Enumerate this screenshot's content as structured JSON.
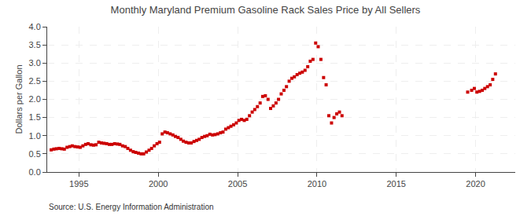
{
  "chart_data": {
    "type": "scatter",
    "title": "Monthly Maryland Premium Gasoline Rack Sales Price by All Sellers",
    "ylabel": "Dollars per Gallon",
    "annotations": [
      "Source: U.S. Energy Information Administration"
    ],
    "color": "#cc0000",
    "marker": "square",
    "grid": true,
    "xlim": [
      1993.0,
      2022.5
    ],
    "ylim": [
      0.0,
      4.0
    ],
    "xticks": [
      1995,
      2000,
      2005,
      2010,
      2015,
      2020
    ],
    "yticks": [
      {
        "value": 0.0,
        "label": "0.0"
      },
      0.5,
      {
        "value": 1.0,
        "label": "1.0"
      },
      1.5,
      {
        "value": 2.0,
        "label": "2.0"
      },
      2.5,
      {
        "value": 3.0,
        "label": "3.0"
      },
      3.5,
      {
        "value": 4.0,
        "label": "4.0"
      }
    ],
    "x": [
      1993.25,
      1993.42,
      1993.58,
      1993.75,
      1993.92,
      1994.08,
      1994.25,
      1994.42,
      1994.58,
      1994.75,
      1994.92,
      1995.08,
      1995.25,
      1995.42,
      1995.58,
      1995.75,
      1995.92,
      1996.08,
      1996.25,
      1996.42,
      1996.58,
      1996.75,
      1996.92,
      1997.08,
      1997.25,
      1997.42,
      1997.58,
      1997.75,
      1997.92,
      1998.08,
      1998.25,
      1998.42,
      1998.58,
      1998.75,
      1998.92,
      1999.08,
      1999.25,
      1999.42,
      1999.58,
      1999.75,
      1999.92,
      2000.08,
      2000.25,
      2000.42,
      2000.58,
      2000.75,
      2000.92,
      2001.08,
      2001.25,
      2001.42,
      2001.58,
      2001.75,
      2001.92,
      2002.08,
      2002.25,
      2002.42,
      2002.58,
      2002.75,
      2002.92,
      2003.08,
      2003.25,
      2003.42,
      2003.58,
      2003.75,
      2003.92,
      2004.08,
      2004.25,
      2004.42,
      2004.58,
      2004.75,
      2004.92,
      2005.08,
      2005.25,
      2005.42,
      2005.58,
      2005.75,
      2005.92,
      2006.08,
      2006.25,
      2006.42,
      2006.58,
      2006.75,
      2006.92,
      2007.08,
      2007.25,
      2007.42,
      2007.58,
      2007.75,
      2007.92,
      2008.08,
      2008.25,
      2008.42,
      2008.58,
      2008.75,
      2008.92,
      2009.08,
      2009.25,
      2009.42,
      2009.58,
      2009.75,
      2009.92,
      2010.08,
      2010.25,
      2010.42,
      2010.58,
      2010.75,
      2010.92,
      2011.08,
      2011.25,
      2011.42,
      2011.58,
      2019.5,
      2019.75,
      2019.92,
      2020.08,
      2020.25,
      2020.42,
      2020.58,
      2020.75,
      2020.92,
      2021.08,
      2021.25
    ],
    "values": [
      0.61,
      0.63,
      0.64,
      0.65,
      0.64,
      0.63,
      0.68,
      0.7,
      0.72,
      0.7,
      0.69,
      0.68,
      0.72,
      0.76,
      0.78,
      0.75,
      0.74,
      0.75,
      0.82,
      0.8,
      0.79,
      0.78,
      0.76,
      0.76,
      0.78,
      0.77,
      0.76,
      0.72,
      0.7,
      0.65,
      0.6,
      0.56,
      0.54,
      0.52,
      0.5,
      0.5,
      0.55,
      0.6,
      0.65,
      0.72,
      0.78,
      0.82,
      1.05,
      1.1,
      1.08,
      1.05,
      1.02,
      0.98,
      0.95,
      0.9,
      0.85,
      0.82,
      0.8,
      0.8,
      0.84,
      0.87,
      0.9,
      0.95,
      0.98,
      1.0,
      1.04,
      1.02,
      1.03,
      1.05,
      1.08,
      1.1,
      1.18,
      1.22,
      1.26,
      1.3,
      1.35,
      1.42,
      1.45,
      1.42,
      1.45,
      1.55,
      1.65,
      1.72,
      1.8,
      1.9,
      2.08,
      2.1,
      2.0,
      1.75,
      1.82,
      1.9,
      2.0,
      2.15,
      2.25,
      2.35,
      2.5,
      2.58,
      2.62,
      2.68,
      2.72,
      2.75,
      2.8,
      2.9,
      3.05,
      3.1,
      3.55,
      3.45,
      3.1,
      2.6,
      2.4,
      1.55,
      1.35,
      1.5,
      1.6,
      1.65,
      1.55,
      2.2,
      2.25,
      2.3,
      2.2,
      2.22,
      2.25,
      2.3,
      2.35,
      2.4,
      2.55,
      2.7
    ]
  }
}
